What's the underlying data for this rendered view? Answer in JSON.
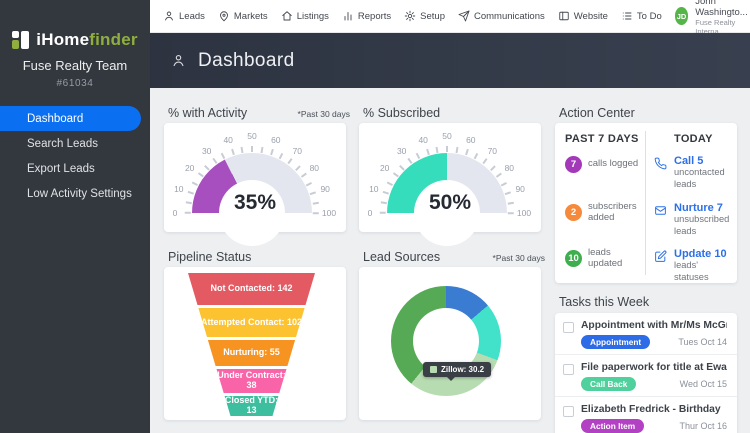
{
  "brand": {
    "name_primary": "iHome",
    "name_secondary": "finder",
    "team": "Fuse Realty Team",
    "account_id": "#61034",
    "accent_color": "#8fae3e"
  },
  "topnav": {
    "items": [
      {
        "label": "Leads",
        "icon": "person-icon"
      },
      {
        "label": "Markets",
        "icon": "map-pin-icon"
      },
      {
        "label": "Listings",
        "icon": "house-icon"
      },
      {
        "label": "Reports",
        "icon": "bar-chart-icon"
      },
      {
        "label": "Setup",
        "icon": "gear-icon"
      },
      {
        "label": "Communications",
        "icon": "paper-plane-icon"
      },
      {
        "label": "Website",
        "icon": "browser-window-icon"
      },
      {
        "label": "To Do",
        "icon": "list-icon"
      }
    ],
    "user": {
      "initials": "JD",
      "name": "John Washingto...",
      "org": "Fuse Realty Interna...",
      "avatar_color": "#55b54a"
    },
    "search_icon": "search-icon"
  },
  "sidebar": {
    "items": [
      {
        "label": "Dashboard",
        "active": true
      },
      {
        "label": "Search Leads",
        "active": false
      },
      {
        "label": "Export Leads",
        "active": false
      },
      {
        "label": "Low Activity Settings",
        "active": false
      }
    ],
    "active_color": "#0b6ff2"
  },
  "header": {
    "title": "Dashboard",
    "icon": "person-icon"
  },
  "action_center": {
    "title": "Action Center",
    "past_heading": "PAST 7 DAYS",
    "today_heading": "TODAY",
    "past": [
      {
        "count": "7",
        "label": "calls logged",
        "color": "#a339b9"
      },
      {
        "count": "2",
        "label": "subscribers added",
        "color": "#f58a3c"
      },
      {
        "count": "10",
        "label": "leads updated",
        "color": "#3eae4f"
      }
    ],
    "today": [
      {
        "action": "Call 5",
        "detail": "uncontacted leads",
        "icon": "phone-icon"
      },
      {
        "action": "Nurture 7",
        "detail": "unsubscribed leads",
        "icon": "envelope-icon"
      },
      {
        "action": "Update 10",
        "detail": "leads' statuses",
        "icon": "edit-icon"
      }
    ],
    "link_color": "#2c70e8"
  },
  "tasks": {
    "title": "Tasks this Week",
    "items": [
      {
        "title": "Appointment with Mr/Ms McGregor...",
        "badge": "Appointment",
        "badge_color": "#2e6be6",
        "date": "Tues Oct 14"
      },
      {
        "title": "File paperwork for title at Ewan an...",
        "badge": "Call Back",
        "badge_color": "#4fd09d",
        "date": "Wed Oct 15"
      },
      {
        "title": "Elizabeth Fredrick - Birthday",
        "badge": "Action Item",
        "badge_color": "#b341c4",
        "date": "Thur Oct 16"
      }
    ]
  },
  "chart_data": [
    {
      "type": "gauge",
      "title": "% with Activity",
      "note": "*Past 30 days",
      "value": 35,
      "label": "35%",
      "min": 0,
      "max": 100,
      "tick_step": 10,
      "minor_tick_step": 5,
      "ticks": [
        0,
        10,
        20,
        30,
        40,
        50,
        60,
        70,
        80,
        90,
        100
      ],
      "color": "#a84fc0",
      "track_color": "#e3e6ef"
    },
    {
      "type": "gauge",
      "title": "% Subscribed",
      "note": "",
      "value": 50,
      "label": "50%",
      "min": 0,
      "max": 100,
      "tick_step": 10,
      "minor_tick_step": 5,
      "ticks": [
        0,
        10,
        20,
        30,
        40,
        50,
        60,
        70,
        80,
        90,
        100
      ],
      "color": "#36ddbd",
      "track_color": "#e3e6ef"
    },
    {
      "type": "funnel",
      "title": "Pipeline Status",
      "note": "",
      "stages": [
        {
          "name": "Not Contacted",
          "value": 142,
          "label": "Not Contacted: 142",
          "color": "#e45a62"
        },
        {
          "name": "Attempted Contact",
          "value": 102,
          "label": "Attempted Contact: 102",
          "color": "#fcc230"
        },
        {
          "name": "Nurturing",
          "value": 55,
          "label": "Nurturing: 55",
          "color": "#f79421"
        },
        {
          "name": "Under Contract",
          "value": 38,
          "label": "Under Contract: 38",
          "color": "#f964a9"
        },
        {
          "name": "Closed YTD",
          "value": 13,
          "label": "Closed YTD: 13",
          "color": "#3dbf9f"
        }
      ]
    },
    {
      "type": "pie",
      "title": "Lead Sources",
      "note": "*Past 30 days",
      "donut": true,
      "segments": [
        {
          "name": "",
          "value": 13.8,
          "color": "#3a7cd2"
        },
        {
          "name": "",
          "value": 16.9,
          "color": "#41e2c9"
        },
        {
          "name": "Zillow",
          "value": 30.2,
          "color": "#b8dcb2"
        },
        {
          "name": "",
          "value": 39.1,
          "color": "#57aa55"
        }
      ],
      "tooltip": {
        "text": "Zillow: 30.2",
        "swatch_color": "#b8dcb2"
      }
    }
  ]
}
